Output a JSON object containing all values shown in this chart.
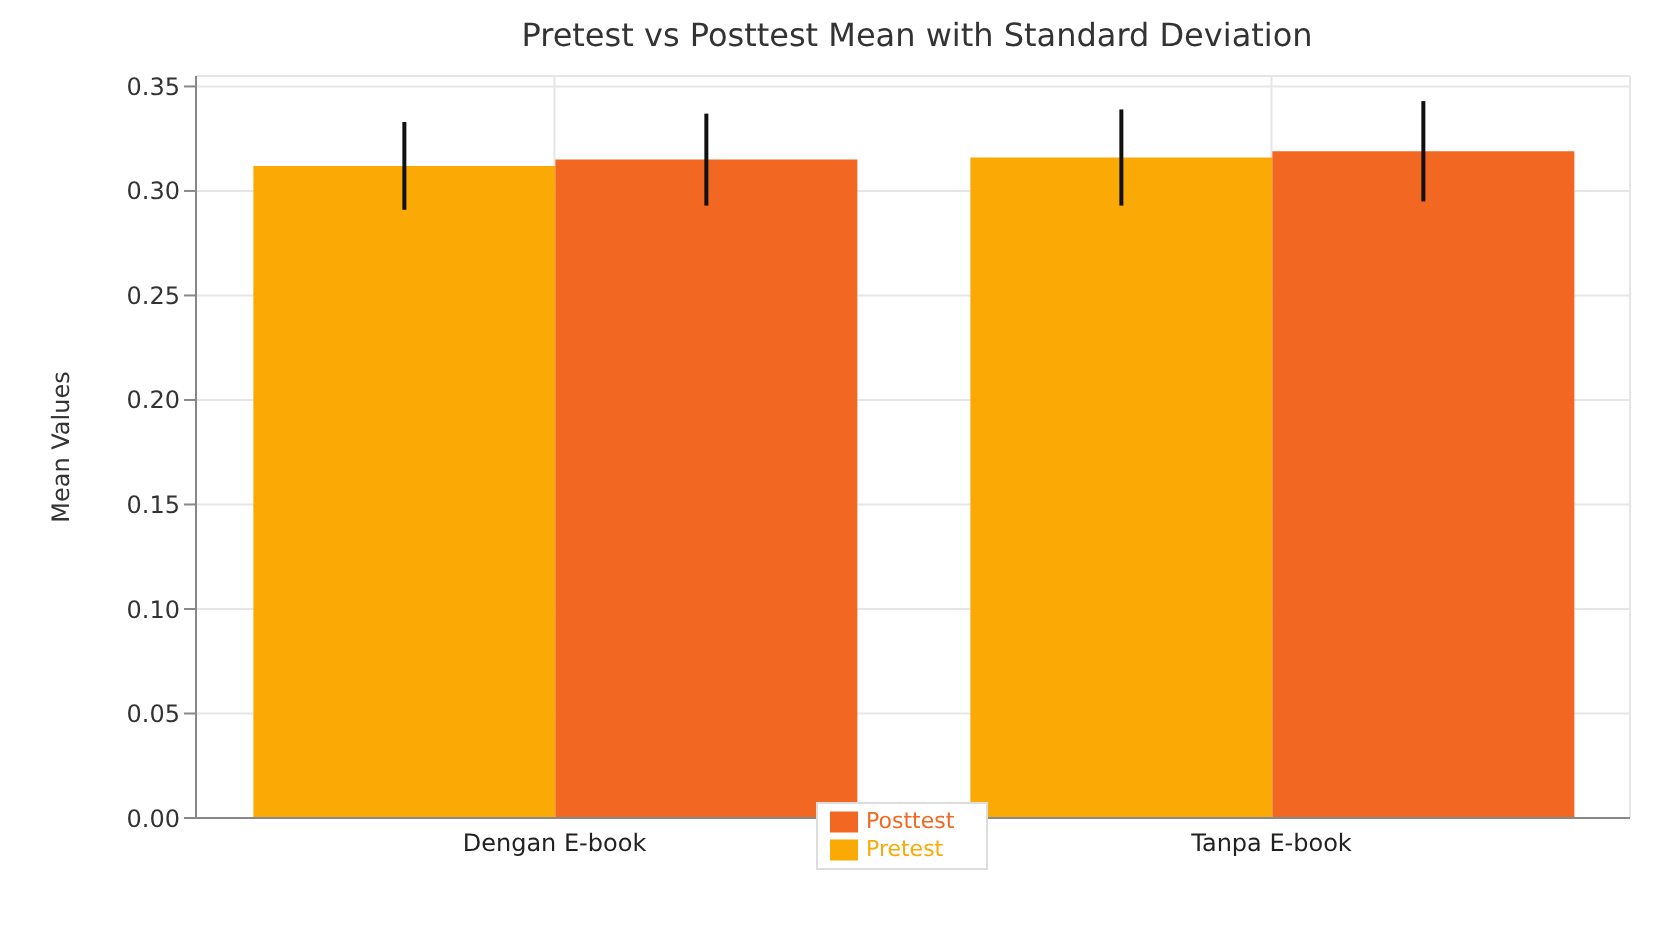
{
  "chart_data": {
    "type": "bar",
    "title": "Pretest vs Posttest Mean with Standard Deviation",
    "ylabel": "Mean Values",
    "categories": [
      "Dengan E-book",
      "Tanpa E-book"
    ],
    "series": [
      {
        "name": "Pretest",
        "color": "#fbaa05",
        "values": [
          0.312,
          0.316
        ],
        "errors": [
          0.021,
          0.023
        ]
      },
      {
        "name": "Posttest",
        "color": "#f26722",
        "values": [
          0.315,
          0.319
        ],
        "errors": [
          0.022,
          0.024
        ]
      }
    ],
    "ylim": [
      0,
      0.355
    ],
    "yticks": [
      {
        "value": 0,
        "label": "0.00"
      },
      {
        "value": 0.05,
        "label": "0.05"
      },
      {
        "value": 0.1,
        "label": "0.10"
      },
      {
        "value": 0.15,
        "label": "0.15"
      },
      {
        "value": 0.2,
        "label": "0.20"
      },
      {
        "value": 0.25,
        "label": "0.25"
      },
      {
        "value": 0.3,
        "label": "0.30"
      },
      {
        "value": 0.35,
        "label": "0.35"
      }
    ],
    "grid": true,
    "legend": "bottom"
  }
}
